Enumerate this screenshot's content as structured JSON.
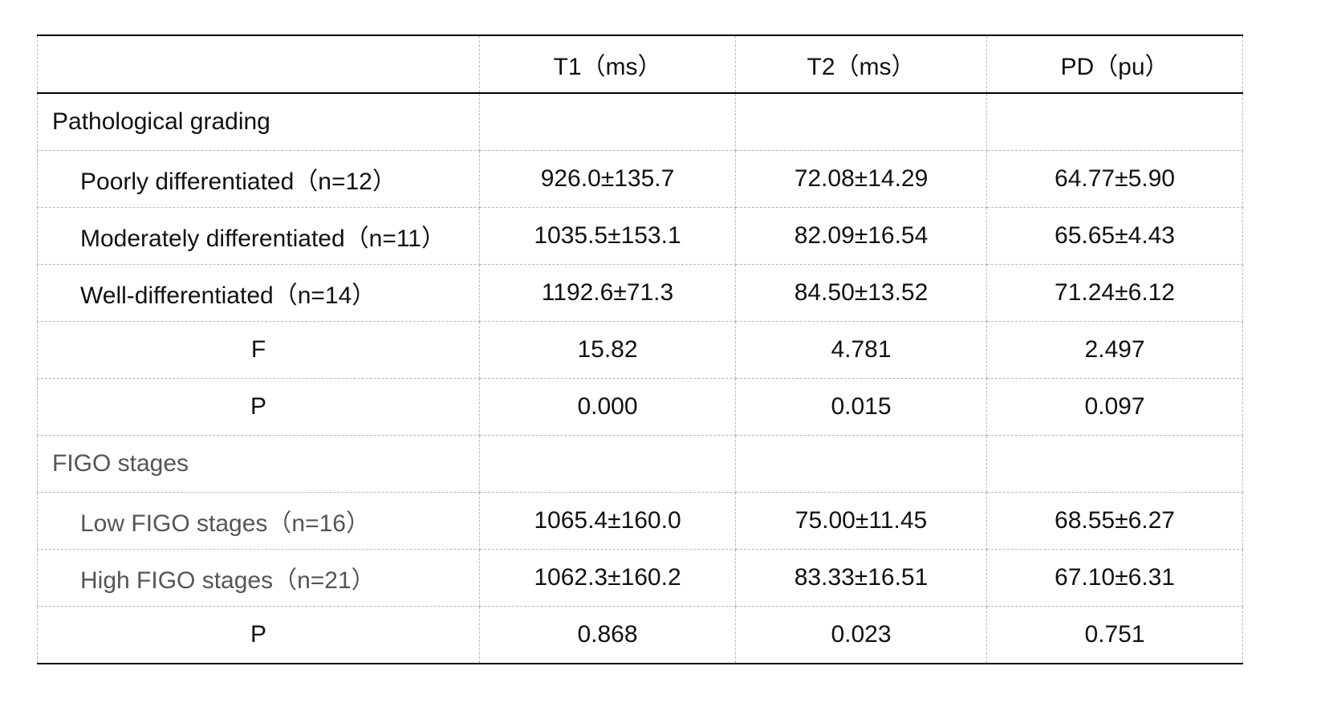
{
  "table": {
    "header": [
      "T1（ms）",
      "T2（ms）",
      "PD（pu）"
    ],
    "rows": [
      {
        "label": "Pathological grading"
      },
      {
        "label": "Poorly differentiated（n=12）",
        "cells": [
          "926.0±135.7",
          "72.08±14.29",
          "64.77±5.90"
        ]
      },
      {
        "label": "Moderately differentiated（n=11）",
        "cells": [
          "1035.5±153.1",
          "82.09±16.54",
          "65.65±4.43"
        ]
      },
      {
        "label": "Well-differentiated（n=14）",
        "cells": [
          "1192.6±71.3",
          "84.50±13.52",
          "71.24±6.12"
        ]
      },
      {
        "label": "F",
        "cells": [
          "15.82",
          "4.781",
          "2.497"
        ]
      },
      {
        "label": "P",
        "cells": [
          "0.000",
          "0.015",
          "0.097"
        ]
      },
      {
        "label": "FIGO stages"
      },
      {
        "label": "Low FIGO stages（n=16）",
        "cells": [
          "1065.4±160.0",
          "75.00±11.45",
          "68.55±6.27"
        ]
      },
      {
        "label": "High FIGO stages（n=21）",
        "cells": [
          "1062.3±160.2",
          "83.33±16.51",
          "67.10±6.31"
        ]
      },
      {
        "label": "P",
        "cells": [
          "0.868",
          "0.023",
          "0.751"
        ]
      }
    ]
  }
}
